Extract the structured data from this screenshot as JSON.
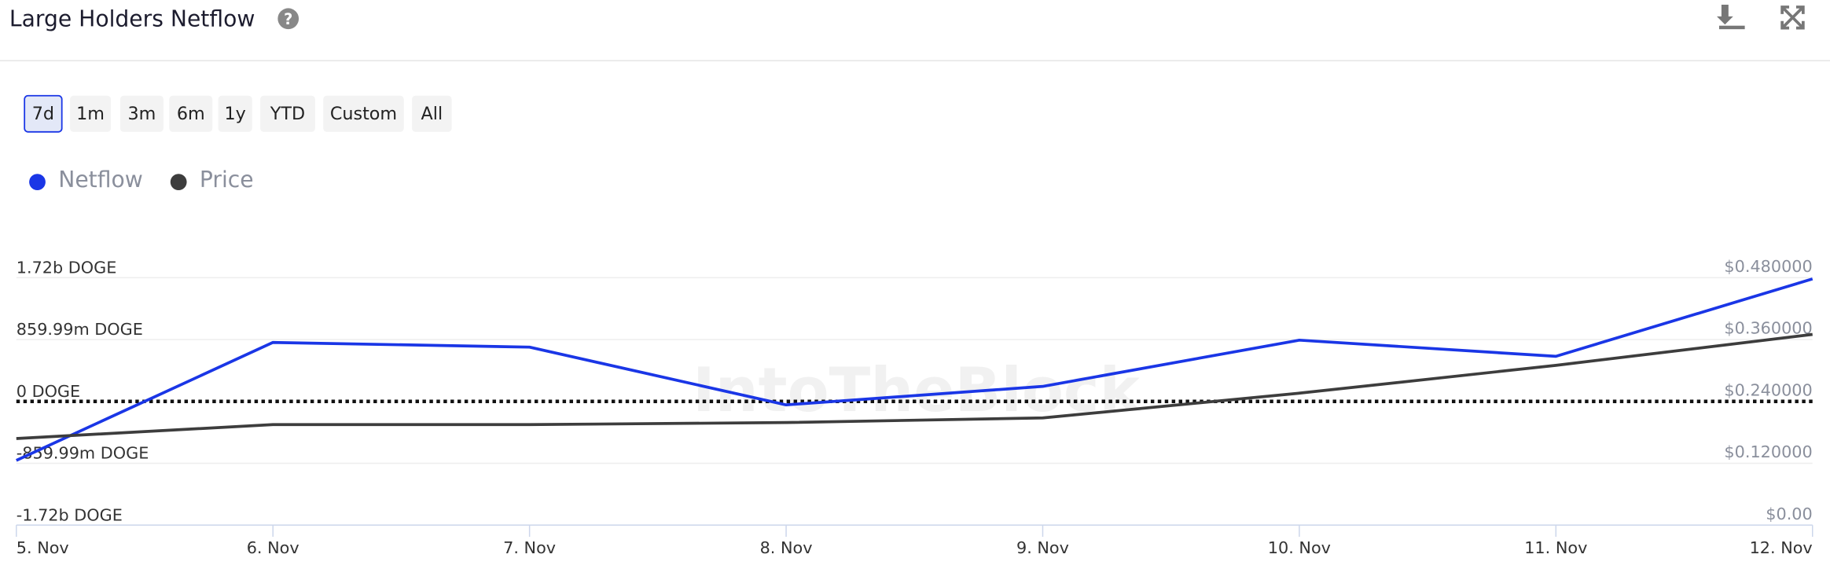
{
  "header": {
    "title": "Large Holders Netflow"
  },
  "range_buttons": [
    "7d",
    "1m",
    "3m",
    "6m",
    "1y",
    "YTD",
    "Custom",
    "All"
  ],
  "selected_range": "7d",
  "watermark": "IntoTheBlock",
  "chart_data": {
    "type": "line",
    "categories": [
      "5. Nov",
      "6. Nov",
      "7. Nov",
      "8. Nov",
      "9. Nov",
      "10. Nov",
      "11. Nov",
      "12. Nov"
    ],
    "series": [
      {
        "name": "Netflow",
        "color": "#1a36e6",
        "values": [
          -820000000,
          820000000,
          755000000,
          -48000000,
          209000000,
          852000000,
          627000000,
          1704000000
        ]
      },
      {
        "name": "Price",
        "color": "#3d3d3d",
        "axis": "y2",
        "values": [
          0.168,
          0.195,
          0.195,
          0.199,
          0.208,
          0.256,
          0.31,
          0.37
        ]
      }
    ],
    "ylim": [
      -1720000000,
      1720000000
    ],
    "yticks": [
      {
        "value": -1720000000,
        "label": "-1.72b DOGE"
      },
      {
        "value": -859990000,
        "label": "-859.99m DOGE"
      },
      {
        "value": 0,
        "label": "0 DOGE"
      },
      {
        "value": 859990000,
        "label": "859.99m DOGE"
      },
      {
        "value": 1720000000,
        "label": "1.72b DOGE"
      }
    ],
    "y2lim": [
      0,
      0.48
    ],
    "y2ticks": [
      {
        "value": 0,
        "label": "$0.00"
      },
      {
        "value": 0.12,
        "label": "$0.120000"
      },
      {
        "value": 0.24,
        "label": "$0.240000"
      },
      {
        "value": 0.36,
        "label": "$0.360000"
      },
      {
        "value": 0.48,
        "label": "$0.480000"
      }
    ],
    "grid": true
  }
}
